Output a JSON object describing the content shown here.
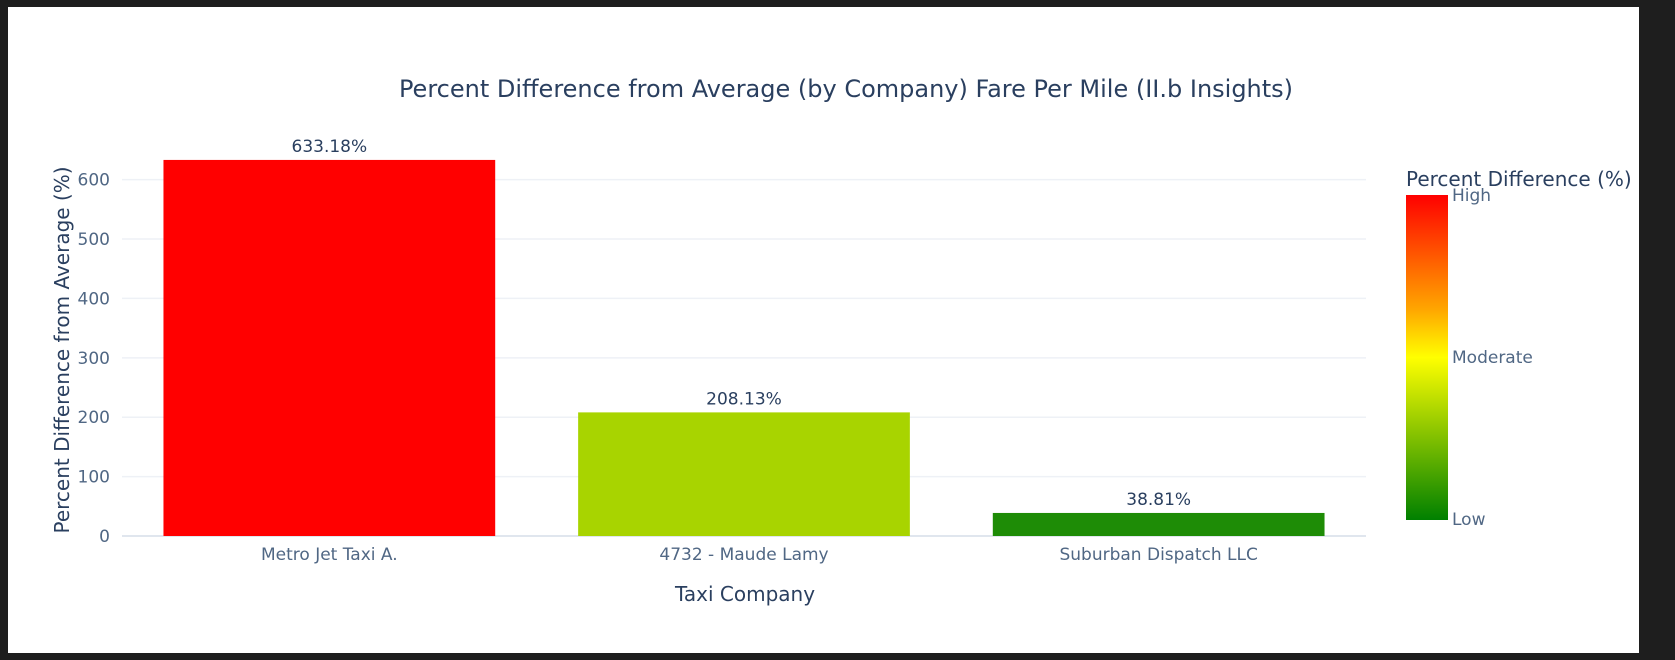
{
  "chart_data": {
    "type": "bar",
    "title": "Percent Difference from Average (by Company) Fare Per Mile (II.b Insights)",
    "xlabel": "Taxi Company",
    "ylabel": "Percent Difference from Average (%)",
    "categories": [
      "Metro Jet Taxi A.",
      "4732 - Maude Lamy",
      "Suburban Dispatch LLC"
    ],
    "values": [
      633.18,
      208.13,
      38.81
    ],
    "value_labels": [
      "633.18%",
      "208.13%",
      "38.81%"
    ],
    "bar_colors": [
      "#ff0000",
      "#a8d400",
      "#1e8c06"
    ],
    "ylim": [
      0,
      660
    ],
    "yticks": [
      0,
      100,
      200,
      300,
      400,
      500,
      600
    ],
    "grid": true,
    "colorbar": {
      "title": "Percent Difference (%)",
      "labels": [
        "High",
        "Moderate",
        "Low"
      ],
      "colors": [
        "#ff0000",
        "#ffa500",
        "#ffff00",
        "#008000"
      ]
    }
  }
}
